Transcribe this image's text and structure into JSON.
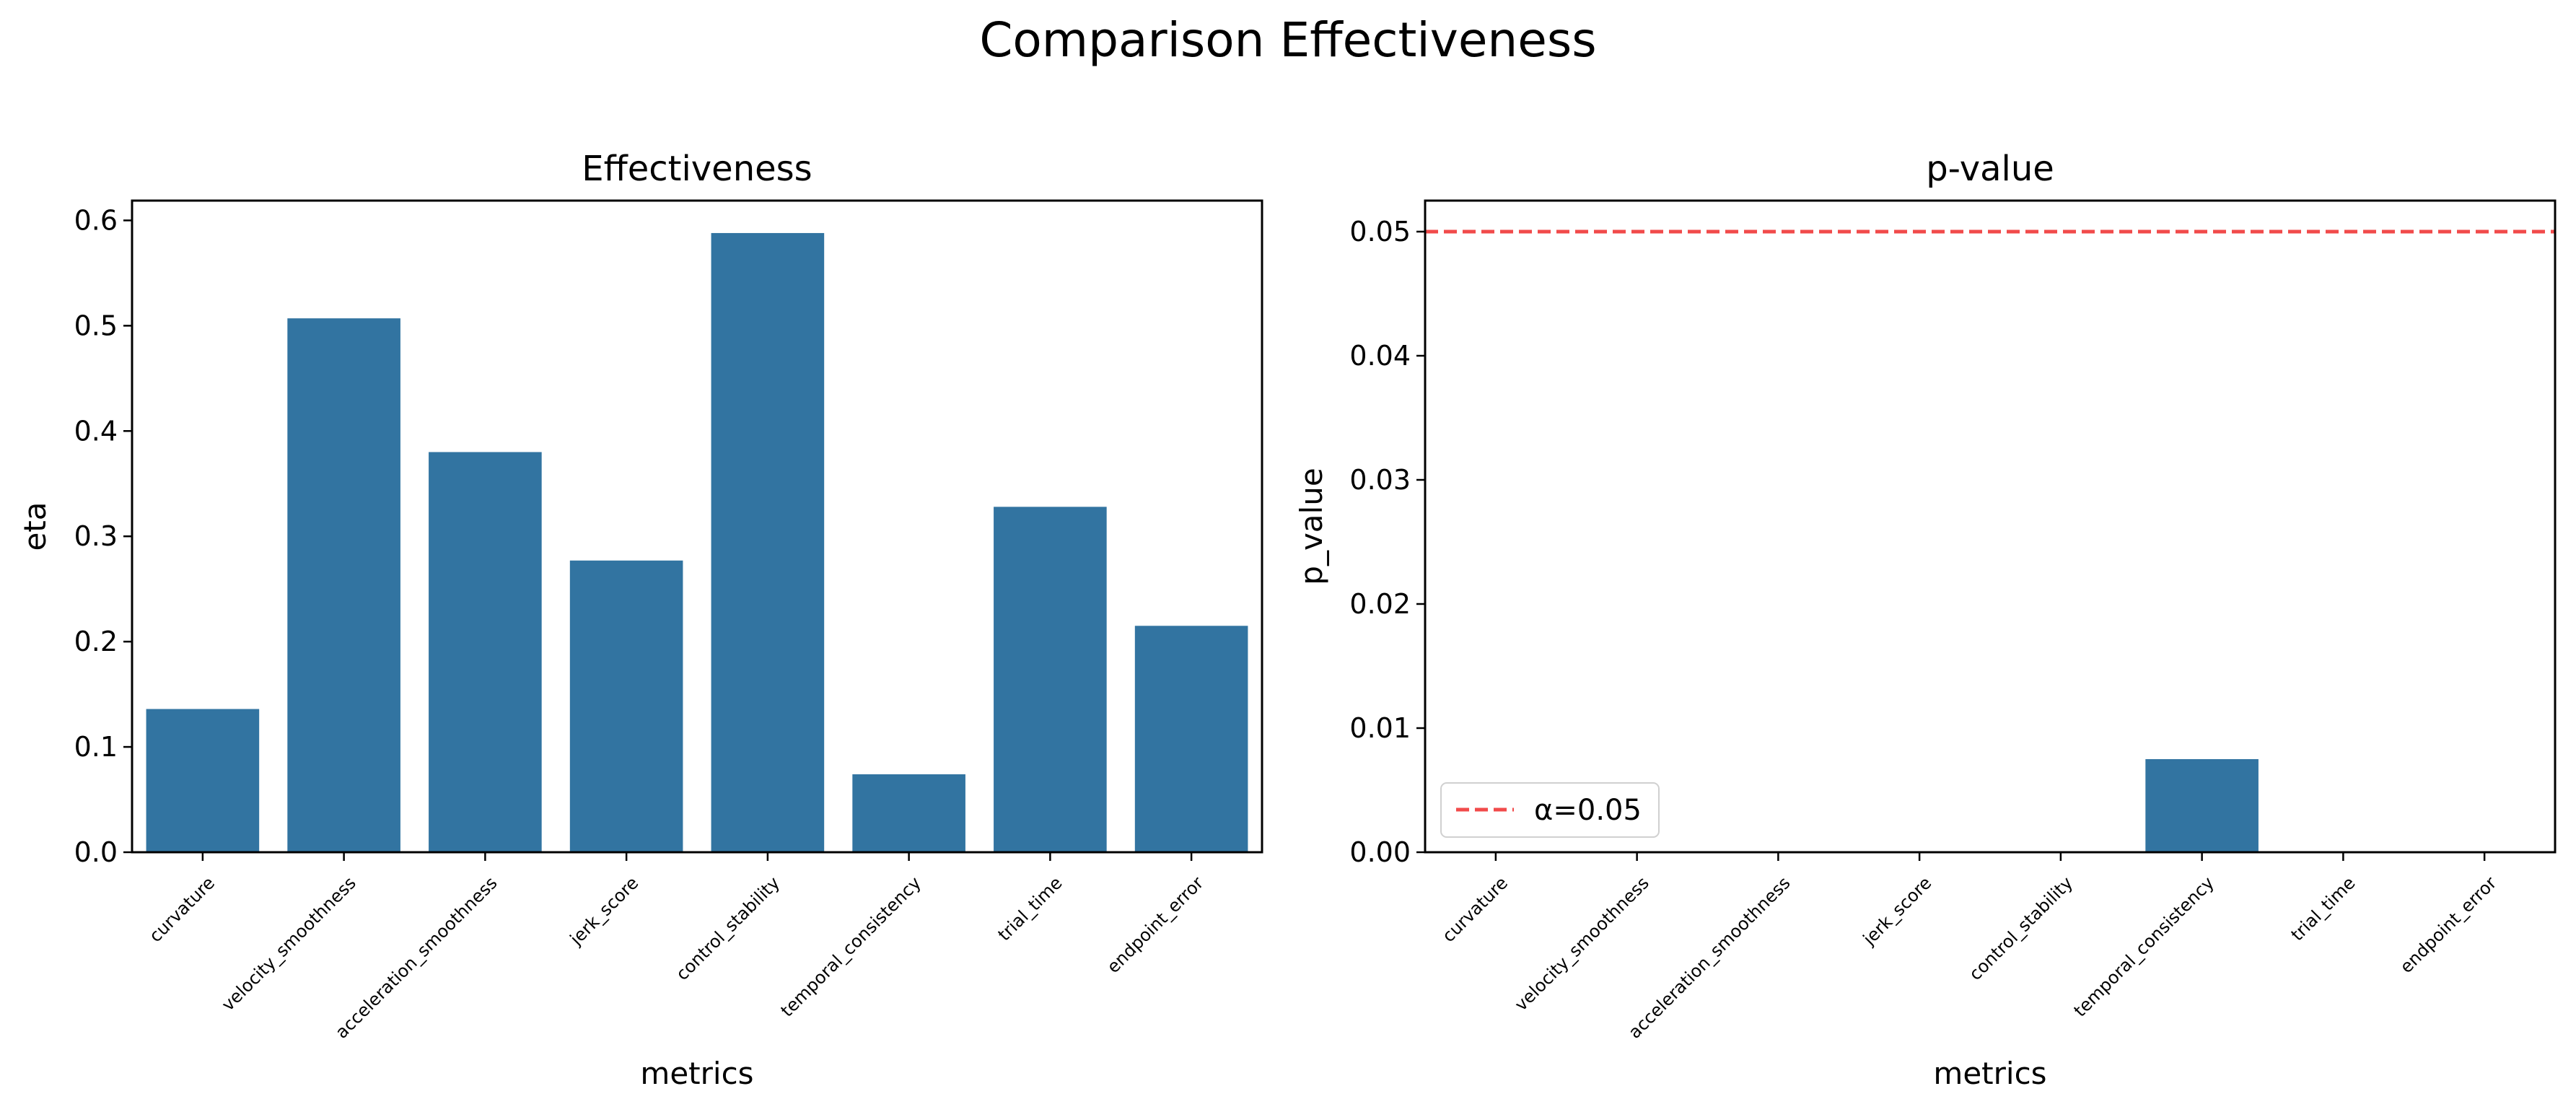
{
  "title": "Comparison Effectiveness",
  "colors": {
    "bar": "#3274a1",
    "threshold": "#f14b4b",
    "axis": "#000000"
  },
  "chart_data": [
    {
      "type": "bar",
      "title": "Effectiveness",
      "xlabel": "metrics",
      "ylabel": "eta",
      "categories": [
        "curvature",
        "velocity_smoothness",
        "acceleration_smoothness",
        "jerk_score",
        "control_stability",
        "temporal_consistency",
        "trial_time",
        "endpoint_error"
      ],
      "values": [
        0.136,
        0.507,
        0.38,
        0.277,
        0.588,
        0.074,
        0.328,
        0.215
      ],
      "ylim": [
        0,
        0.6188
      ],
      "yticks": [
        0.0,
        0.1,
        0.2,
        0.3,
        0.4,
        0.5,
        0.6
      ],
      "ytick_labels": [
        "0.0",
        "0.1",
        "0.2",
        "0.3",
        "0.4",
        "0.5",
        "0.6"
      ],
      "grid": false
    },
    {
      "type": "bar",
      "title": "p-value",
      "xlabel": "metrics",
      "ylabel": "p_value",
      "categories": [
        "curvature",
        "velocity_smoothness",
        "acceleration_smoothness",
        "jerk_score",
        "control_stability",
        "temporal_consistency",
        "trial_time",
        "endpoint_error"
      ],
      "values": [
        0.0,
        0.0,
        0.0,
        0.0,
        0.0,
        0.0075,
        0.0,
        0.0
      ],
      "ylim": [
        0,
        0.0525
      ],
      "yticks": [
        0.0,
        0.01,
        0.02,
        0.03,
        0.04,
        0.05
      ],
      "ytick_labels": [
        "0.00",
        "0.01",
        "0.02",
        "0.03",
        "0.04",
        "0.05"
      ],
      "threshold": {
        "value": 0.05,
        "label": "α=0.05"
      },
      "legend": "lower-left",
      "grid": false
    }
  ]
}
